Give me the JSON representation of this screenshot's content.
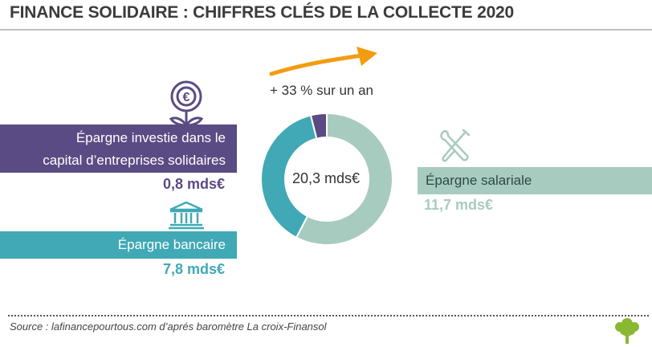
{
  "title": "FINANCE SOLIDAIRE : CHIFFRES CLÉS DE LA COLLECTE 2020",
  "growth_label": "+ 33 % sur un an",
  "source": "Source : lafinancepourtous.com d’aprés baromètre La croix-Finansol",
  "colors": {
    "purple": "#5b4b84",
    "teal": "#40a9b5",
    "mint": "#a8cbc0",
    "arrow": "#f39c12",
    "logo": "#8ab833"
  },
  "icons": {
    "purple": "euro-flower-icon",
    "teal": "bank-building-icon",
    "mint": "tools-wrench-screwdriver-icon",
    "growth": "growth-arrow-icon",
    "brand": "tree-logo-icon"
  },
  "chart_data": {
    "type": "pie",
    "variant": "donut",
    "total_label": "20,3 mds€",
    "slices": [
      {
        "label_line1": "Épargne investie dans le",
        "label_line2": "capital d’entreprises solidaires",
        "value": 0.8,
        "value_label": "0,8 mds€",
        "color": "#5b4b84"
      },
      {
        "label": "Épargne bancaire",
        "value": 7.8,
        "value_label": "7,8 mds€",
        "color": "#40a9b5"
      },
      {
        "label": "Épargne salariale",
        "value": 11.7,
        "value_label": "11,7 mds€",
        "color": "#a8cbc0"
      }
    ]
  }
}
